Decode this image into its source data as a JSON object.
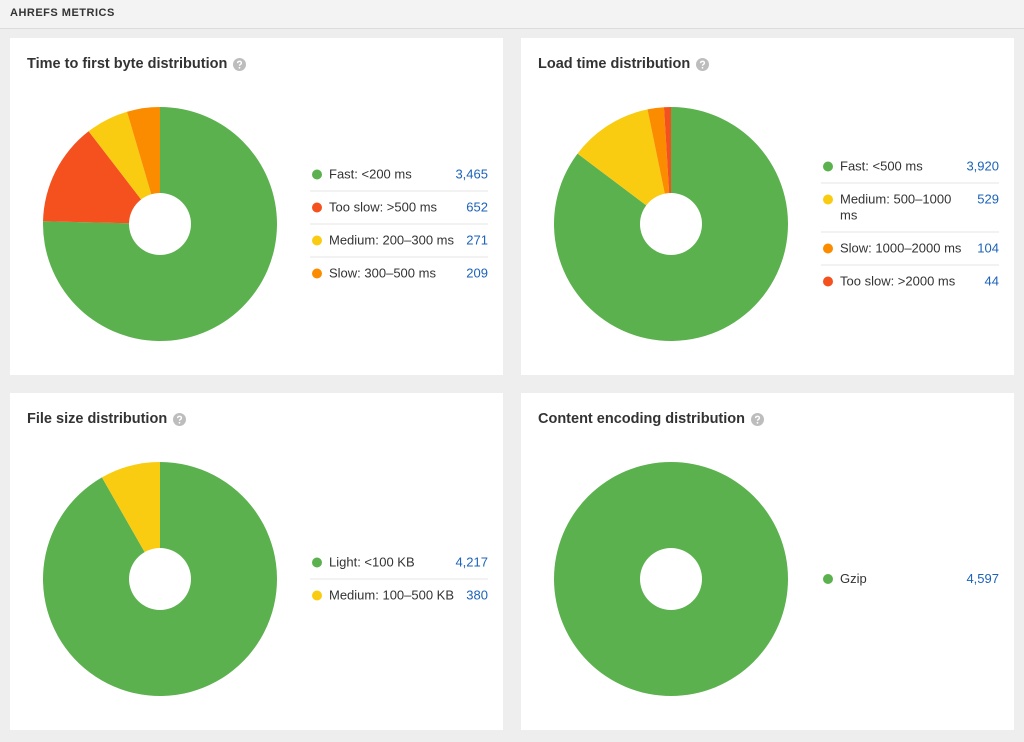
{
  "header": {
    "title": "AHREFS METRICS"
  },
  "chart_data": [
    {
      "type": "pie",
      "title": "Time to first byte distribution",
      "categories": [
        "Fast: <200 ms",
        "Too slow: >500 ms",
        "Medium: 200–300 ms",
        "Slow: 300–500 ms"
      ],
      "values": [
        3465,
        652,
        271,
        209
      ],
      "value_labels": [
        "3,465",
        "652",
        "271",
        "209"
      ],
      "colors": [
        "#5bb14e",
        "#f4511e",
        "#f9cc12",
        "#fb8c00"
      ]
    },
    {
      "type": "pie",
      "title": "Load time distribution",
      "categories": [
        "Fast: <500 ms",
        "Medium: 500–1000 ms",
        "Slow: 1000–2000 ms",
        "Too slow: >2000 ms"
      ],
      "values": [
        3920,
        529,
        104,
        44
      ],
      "value_labels": [
        "3,920",
        "529",
        "104",
        "44"
      ],
      "colors": [
        "#5bb14e",
        "#f9cc12",
        "#fb8c00",
        "#f4511e"
      ]
    },
    {
      "type": "pie",
      "title": "File size distribution",
      "categories": [
        "Light: <100 KB",
        "Medium: 100–500 KB"
      ],
      "values": [
        4217,
        380
      ],
      "value_labels": [
        "4,217",
        "380"
      ],
      "colors": [
        "#5bb14e",
        "#f9cc12"
      ]
    },
    {
      "type": "pie",
      "title": "Content encoding distribution",
      "categories": [
        "Gzip"
      ],
      "values": [
        4597
      ],
      "value_labels": [
        "4,597"
      ],
      "colors": [
        "#5bb14e"
      ]
    }
  ]
}
